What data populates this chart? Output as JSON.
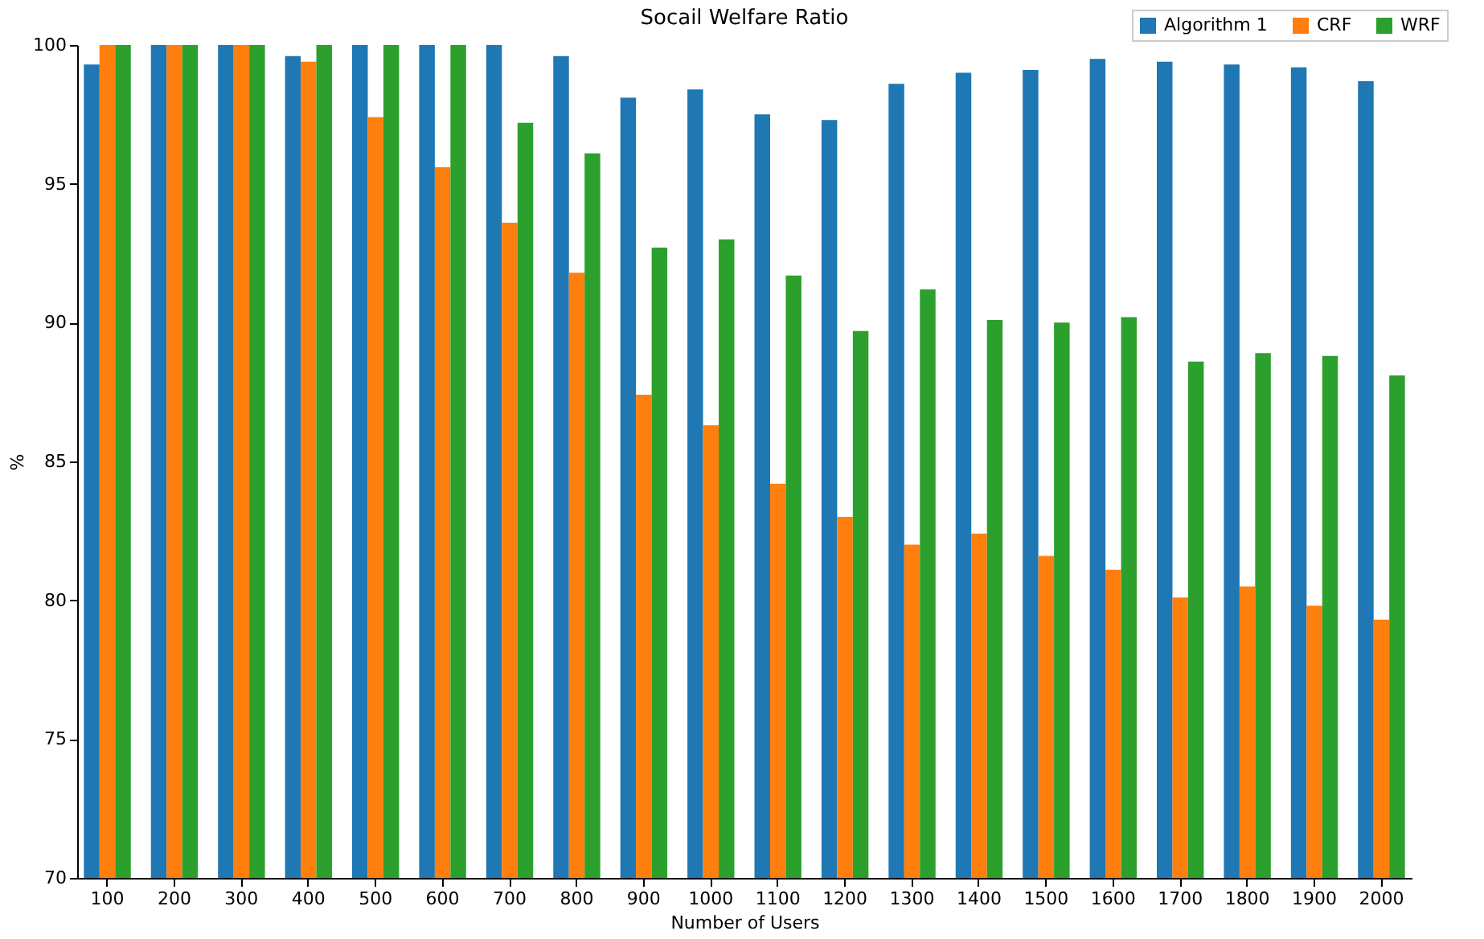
{
  "chart_data": {
    "type": "bar",
    "title": "Socail Welfare Ratio",
    "xlabel": "Number of Users",
    "ylabel": "%",
    "categories": [
      "100",
      "200",
      "300",
      "400",
      "500",
      "600",
      "700",
      "800",
      "900",
      "1000",
      "1100",
      "1200",
      "1300",
      "1400",
      "1500",
      "1600",
      "1700",
      "1800",
      "1900",
      "2000"
    ],
    "series": [
      {
        "name": "Algorithm 1",
        "color": "#1f77b4",
        "values": [
          99.3,
          100,
          100,
          99.6,
          100,
          100,
          100,
          99.6,
          98.1,
          98.4,
          97.5,
          97.3,
          98.6,
          99.0,
          99.1,
          99.5,
          99.4,
          99.3,
          99.2,
          98.7
        ]
      },
      {
        "name": "CRF",
        "color": "#ff7f0e",
        "values": [
          100,
          100,
          100,
          99.4,
          97.4,
          95.6,
          93.6,
          91.8,
          87.4,
          86.3,
          84.2,
          83.0,
          82.0,
          82.4,
          81.6,
          81.1,
          80.1,
          80.5,
          79.8,
          79.3
        ]
      },
      {
        "name": "WRF",
        "color": "#2ca02c",
        "values": [
          100,
          100,
          100,
          100,
          100,
          100,
          97.2,
          96.1,
          92.7,
          93.0,
          91.7,
          89.7,
          91.2,
          90.1,
          90.0,
          90.2,
          88.6,
          88.9,
          88.8,
          88.1
        ]
      }
    ],
    "ylim": [
      70,
      100
    ],
    "yticks": [
      70,
      75,
      80,
      85,
      90,
      95,
      100
    ],
    "grid": false,
    "legend": "top right"
  }
}
